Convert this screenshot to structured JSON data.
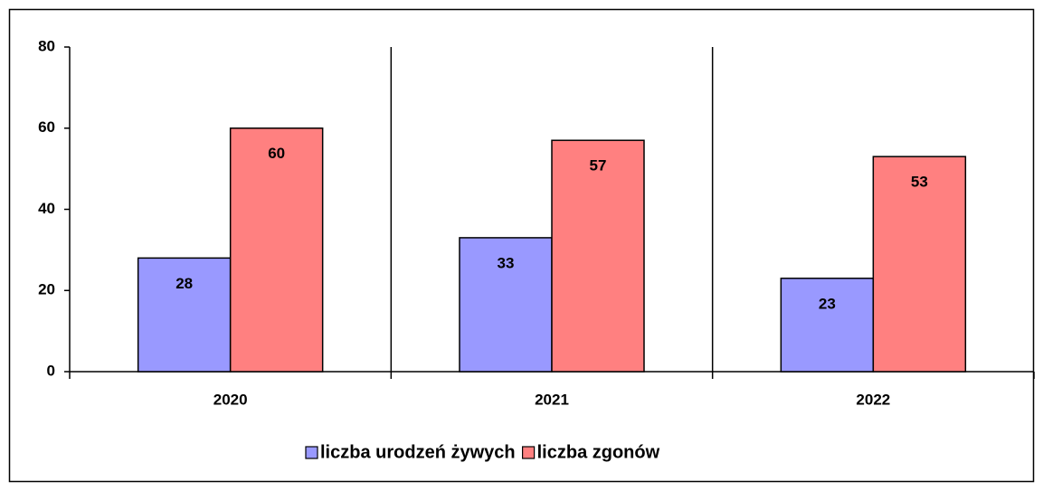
{
  "chart_data": {
    "type": "bar",
    "categories": [
      "2020",
      "2021",
      "2022"
    ],
    "series": [
      {
        "name": "liczba urodzeń żywych",
        "color": "#9999ff",
        "values": [
          28,
          33,
          23
        ]
      },
      {
        "name": "liczba zgonów",
        "color": "#ff8080",
        "values": [
          60,
          57,
          53
        ]
      }
    ],
    "ylim": [
      0,
      80
    ],
    "yticks": [
      0,
      20,
      40,
      60,
      80
    ],
    "legend": "bottom"
  }
}
